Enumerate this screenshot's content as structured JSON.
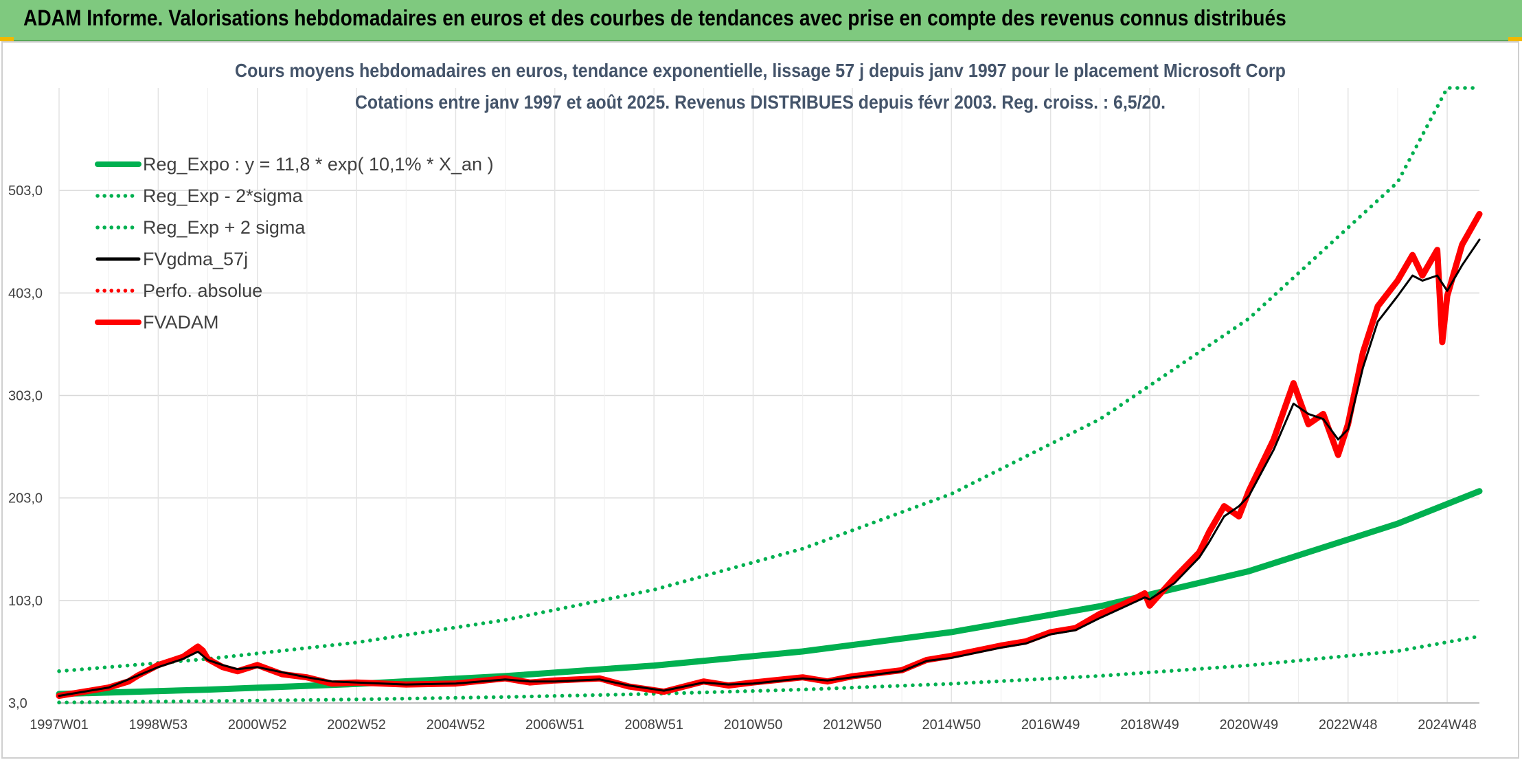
{
  "header": {
    "title": "ADAM Informe. Valorisations hebdomadaires en euros et des courbes de tendances avec prise en compte des revenus connus distribués",
    "background_color": "#7fc97f"
  },
  "chart_data": {
    "type": "line",
    "title": "Cours moyens hebdomadaires en euros, tendance exponentielle, lissage 57 j depuis janv 1997 pour le placement Microsoft Corp",
    "subtitle": "Cotations entre janv 1997 et août 2025. Revenus DISTRIBUES depuis févr 2003. Reg. croiss. : 6,5/20.",
    "xlabel": "",
    "ylabel": "",
    "x_range": [
      1997.0,
      2025.65
    ],
    "ylim": [
      3,
      603
    ],
    "y_ticks": [
      3,
      103,
      203,
      303,
      403,
      503
    ],
    "y_tick_labels": [
      "3,0",
      "103,0",
      "203,0",
      "303,0",
      "403,0",
      "503,0"
    ],
    "x_tick_labels": [
      "1997W01",
      "1998W53",
      "2000W52",
      "2002W52",
      "2004W52",
      "2006W51",
      "2008W51",
      "2010W50",
      "2012W50",
      "2014W50",
      "2016W49",
      "2018W49",
      "2020W49",
      "2022W48",
      "2024W48"
    ],
    "x_tick_years": [
      1997.0,
      1999.0,
      2001.0,
      2003.0,
      2005.0,
      2007.0,
      2009.0,
      2011.0,
      2013.0,
      2015.0,
      2017.0,
      2019.0,
      2021.0,
      2023.0,
      2025.0
    ],
    "grid": true,
    "legend_position": "top-left",
    "series": [
      {
        "name": "Reg_Expo : y = 11,8 * exp( 10,1% *  X_an )",
        "color": "#00b050",
        "style": "solid-thick",
        "x": [
          1997.0,
          2000.0,
          2003.0,
          2006.0,
          2009.0,
          2012.0,
          2015.0,
          2018.0,
          2021.0,
          2024.0,
          2025.65
        ],
        "y": [
          11.8,
          16.0,
          21.6,
          29.2,
          39.5,
          53.3,
          72.1,
          97.4,
          131.6,
          177.9,
          209.6
        ]
      },
      {
        "name": "Reg_Exp - 2*sigma",
        "color": "#00b050",
        "style": "dotted",
        "x": [
          1997.0,
          2000.0,
          2003.0,
          2006.0,
          2009.0,
          2012.0,
          2015.0,
          2018.0,
          2021.0,
          2024.0,
          2025.65
        ],
        "y": [
          3.5,
          4.8,
          6.5,
          8.8,
          11.9,
          16.1,
          21.7,
          29.4,
          39.7,
          53.6,
          68.0
        ]
      },
      {
        "name": "Reg_Exp + 2 sigma",
        "color": "#00b050",
        "style": "dotted",
        "x": [
          1997.0,
          2000.0,
          2003.0,
          2006.0,
          2009.0,
          2012.0,
          2015.0,
          2018.0,
          2021.0,
          2024.0,
          2025.0,
          2025.65
        ],
        "y": [
          34.0,
          46.0,
          62.0,
          84.0,
          113.5,
          153.5,
          207.0,
          280.0,
          378.0,
          511.0,
          603.0,
          603.0
        ]
      },
      {
        "name": "FVgdma_57j",
        "color": "#000000",
        "style": "solid",
        "x": [
          1997.0,
          1997.5,
          1998.0,
          1998.5,
          1999.0,
          1999.5,
          1999.8,
          2000.0,
          2000.3,
          2000.6,
          2001.0,
          2001.5,
          2002.0,
          2002.5,
          2003.0,
          2004.0,
          2005.0,
          2006.0,
          2006.5,
          2007.0,
          2007.9,
          2008.5,
          2009.2,
          2010.0,
          2010.5,
          2011.0,
          2012.0,
          2012.5,
          2013.0,
          2014.0,
          2014.5,
          2015.0,
          2016.0,
          2016.5,
          2017.0,
          2017.5,
          2018.0,
          2018.5,
          2018.9,
          2019.0,
          2019.5,
          2020.0,
          2020.2,
          2020.5,
          2020.8,
          2021.0,
          2021.5,
          2021.9,
          2022.2,
          2022.5,
          2022.8,
          2023.0,
          2023.3,
          2023.6,
          2024.0,
          2024.3,
          2024.5,
          2024.8,
          2025.0,
          2025.3,
          2025.65
        ],
        "y": [
          10,
          14,
          18,
          28,
          38,
          46,
          53,
          45,
          40,
          36,
          38,
          33,
          28,
          24,
          23,
          21,
          22,
          26,
          24,
          24,
          26,
          20,
          15,
          23,
          21,
          22,
          27,
          25,
          28,
          34,
          44,
          47,
          57,
          61,
          70,
          74,
          86,
          97,
          106,
          104,
          120,
          145,
          160,
          185,
          195,
          205,
          250,
          295,
          285,
          280,
          260,
          270,
          330,
          375,
          400,
          420,
          415,
          420,
          405,
          430,
          455
        ]
      },
      {
        "name": "Perfo. absolue",
        "color": "#ff0000",
        "style": "dotted",
        "x": [],
        "y": []
      },
      {
        "name": "FVADAM",
        "color": "#ff0000",
        "style": "solid-thick",
        "x": [
          1997.0,
          1997.5,
          1998.0,
          1998.4,
          1998.6,
          1999.0,
          1999.5,
          1999.8,
          1999.9,
          2000.0,
          2000.3,
          2000.6,
          2001.0,
          2001.5,
          2002.0,
          2002.5,
          2003.0,
          2004.0,
          2005.0,
          2006.0,
          2006.5,
          2007.0,
          2007.9,
          2008.5,
          2009.2,
          2010.0,
          2010.5,
          2011.0,
          2012.0,
          2012.5,
          2013.0,
          2014.0,
          2014.5,
          2015.0,
          2016.0,
          2016.5,
          2017.0,
          2017.5,
          2018.0,
          2018.5,
          2018.9,
          2019.0,
          2019.5,
          2020.0,
          2020.2,
          2020.5,
          2020.8,
          2021.0,
          2021.5,
          2021.9,
          2022.2,
          2022.5,
          2022.8,
          2023.0,
          2023.3,
          2023.6,
          2024.0,
          2024.3,
          2024.5,
          2024.8,
          2024.9,
          2025.0,
          2025.3,
          2025.65
        ],
        "y": [
          10,
          14,
          18,
          24,
          30,
          40,
          48,
          58,
          54,
          46,
          38,
          34,
          40,
          31,
          28,
          22,
          23,
          21,
          22,
          27,
          23,
          25,
          27,
          19,
          14,
          24,
          20,
          23,
          28,
          24,
          29,
          35,
          45,
          49,
          59,
          63,
          72,
          76,
          90,
          100,
          110,
          98,
          125,
          150,
          170,
          195,
          185,
          210,
          260,
          315,
          275,
          285,
          245,
          275,
          345,
          390,
          415,
          440,
          420,
          445,
          355,
          400,
          450,
          480
        ]
      }
    ]
  }
}
